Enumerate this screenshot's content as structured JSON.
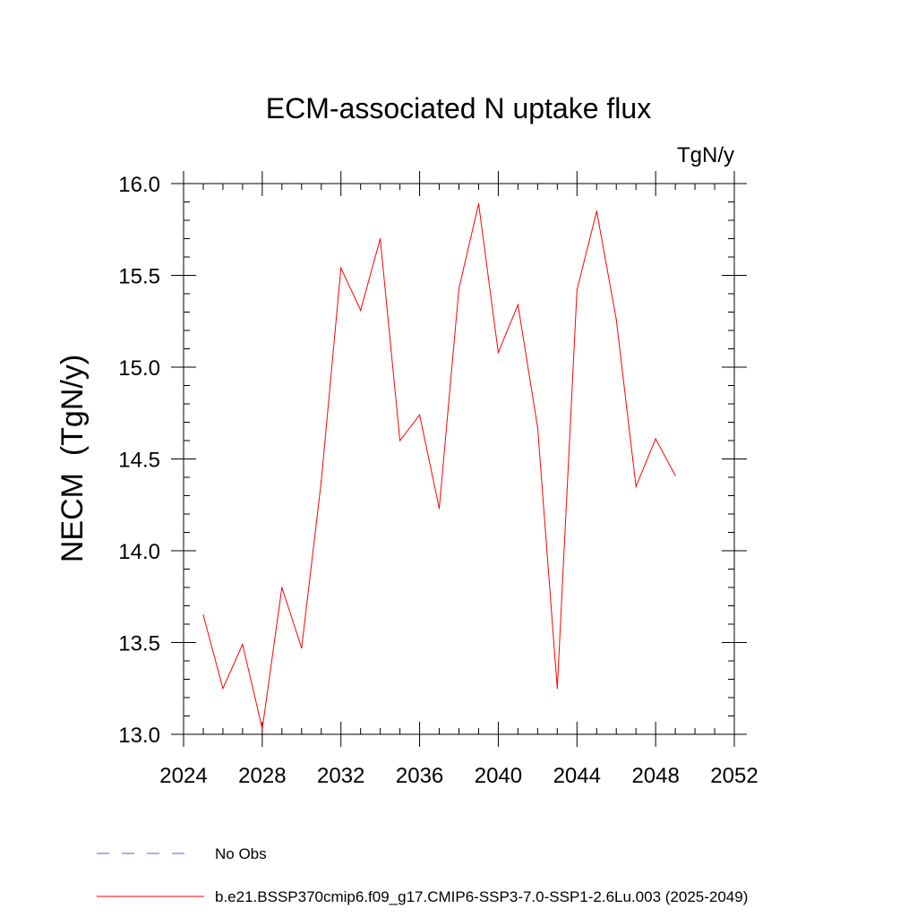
{
  "chart_data": {
    "type": "line",
    "title": "ECM-associated N uptake flux",
    "units_label": "TgN/y",
    "ylabel": "NECM  (TgN/y)",
    "xlabel": "",
    "xlim": [
      2024,
      2052
    ],
    "ylim": [
      13.0,
      16.0
    ],
    "x_ticks": [
      "2024",
      "2028",
      "2032",
      "2036",
      "2040",
      "2044",
      "2048",
      "2052"
    ],
    "y_ticks": [
      "13.0",
      "13.5",
      "14.0",
      "14.5",
      "15.0",
      "15.5",
      "16.0"
    ],
    "series": [
      {
        "name": "b.e21.BSSP370cmip6.f09_g17.CMIP6-SSP3-7.0-SSP1-2.6Lu.003 (2025-2049)",
        "color": "#ff0000",
        "x": [
          2025,
          2026,
          2027,
          2028,
          2029,
          2030,
          2031,
          2032,
          2033,
          2034,
          2035,
          2036,
          2037,
          2038,
          2039,
          2040,
          2041,
          2042,
          2043,
          2044,
          2045,
          2046,
          2047,
          2048,
          2049
        ],
        "y": [
          13.65,
          13.25,
          13.49,
          13.03,
          13.8,
          13.47,
          14.38,
          15.54,
          15.31,
          15.7,
          14.6,
          14.74,
          14.23,
          15.43,
          15.89,
          15.08,
          15.34,
          14.67,
          13.25,
          15.42,
          15.85,
          15.26,
          14.35,
          14.61,
          14.41
        ]
      }
    ],
    "legend": [
      {
        "label": "No Obs",
        "color": "#6a5acd",
        "style": "dashed"
      },
      {
        "label": "b.e21.BSSP370cmip6.f09_g17.CMIP6-SSP3-7.0-SSP1-2.6Lu.003 (2025-2049)",
        "color": "#ff0000",
        "style": "solid"
      }
    ],
    "grid": false,
    "legend_position": "bottom-left"
  }
}
